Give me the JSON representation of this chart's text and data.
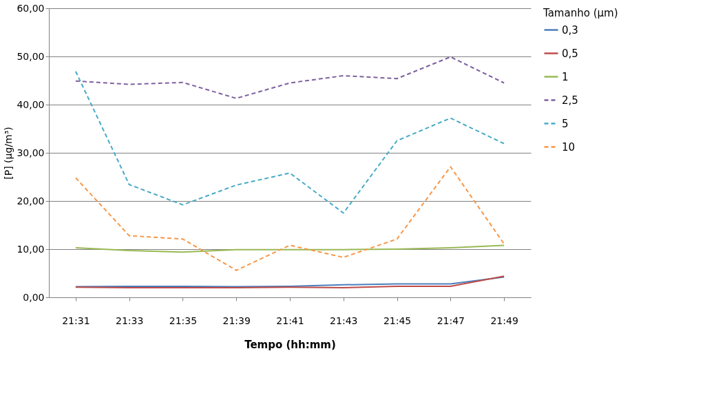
{
  "chart_data": {
    "type": "line",
    "xlabel": "Tempo (hh:mm)",
    "ylabel": "[P] (µg/m³)",
    "legend_title": "Tamanho (µm)",
    "categories": [
      "21:31",
      "21:33",
      "21:35",
      "21:39",
      "21:41",
      "21:43",
      "21:45",
      "21:47",
      "21:49"
    ],
    "ylim": [
      0,
      60
    ],
    "yticks": [
      {
        "value": 0,
        "label": "0,00"
      },
      {
        "value": 10,
        "label": "10,00"
      },
      {
        "value": 20,
        "label": "20,00"
      },
      {
        "value": 30,
        "label": "30,00"
      },
      {
        "value": 40,
        "label": "40,00"
      },
      {
        "value": 50,
        "label": "50,00"
      },
      {
        "value": 60,
        "label": "60,00"
      }
    ],
    "grid": "y",
    "legend": "right",
    "marker": "none",
    "series": [
      {
        "name": "0,3",
        "color": "#4a7ebb",
        "line_style": "solid",
        "values": [
          2.2,
          2.3,
          2.3,
          2.2,
          2.3,
          2.6,
          2.8,
          2.8,
          4.2
        ]
      },
      {
        "name": "0,5",
        "color": "#be4b48",
        "line_style": "solid",
        "values": [
          2.1,
          2.0,
          2.0,
          2.0,
          2.1,
          2.0,
          2.3,
          2.3,
          4.4
        ]
      },
      {
        "name": "1",
        "color": "#98b954",
        "line_style": "solid",
        "values": [
          10.3,
          9.7,
          9.4,
          9.9,
          9.9,
          9.9,
          10.0,
          10.3,
          10.8
        ]
      },
      {
        "name": "2,5",
        "color": "#7d60a0",
        "line_style": "dashed",
        "values": [
          44.9,
          44.2,
          44.6,
          41.3,
          44.5,
          46.0,
          45.4,
          49.9,
          44.5
        ]
      },
      {
        "name": "5",
        "color": "#46aac5",
        "line_style": "dashed",
        "values": [
          46.9,
          23.4,
          19.2,
          23.3,
          25.8,
          17.5,
          32.5,
          37.2,
          31.9
        ]
      },
      {
        "name": "10",
        "color": "#f79646",
        "line_style": "dashed",
        "values": [
          24.8,
          12.8,
          12.1,
          5.6,
          10.8,
          8.3,
          12.1,
          27.1,
          11.1
        ]
      }
    ]
  }
}
